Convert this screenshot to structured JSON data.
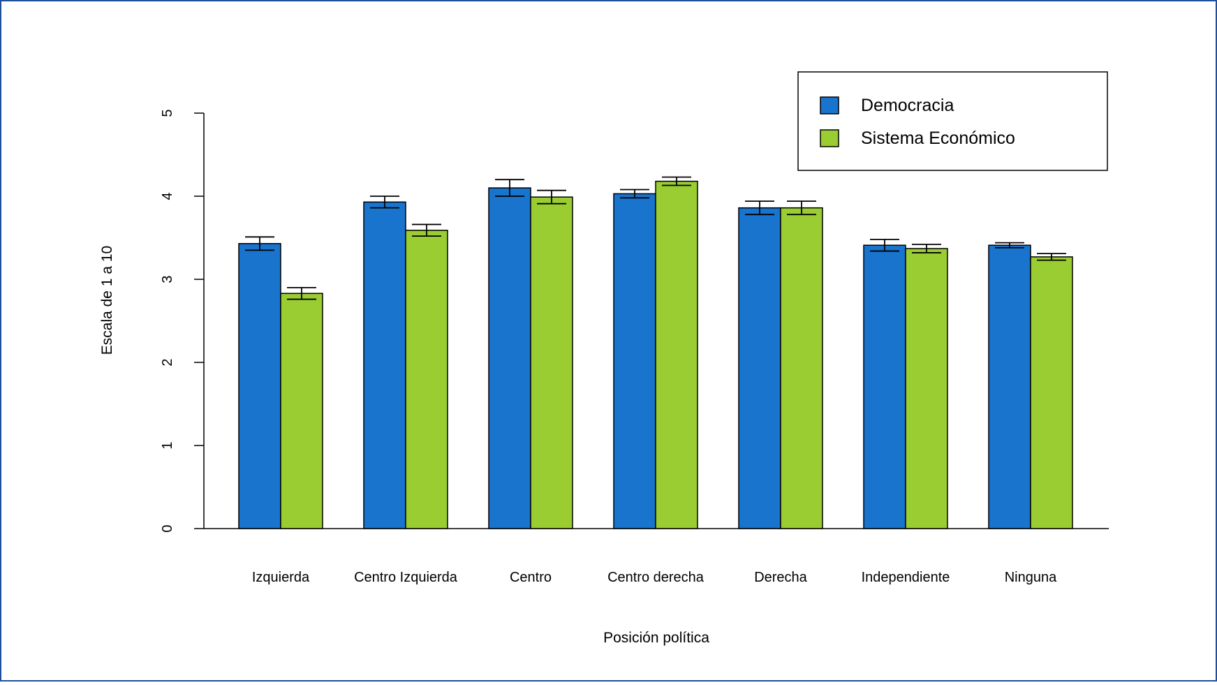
{
  "chart_data": {
    "type": "bar",
    "title": "",
    "xlabel": "Posición política",
    "ylabel": "Escala de 1 a 10",
    "ylim": [
      0,
      5
    ],
    "yticks": [
      0,
      1,
      2,
      3,
      4,
      5
    ],
    "categories": [
      "Izquierda",
      "Centro Izquierda",
      "Centro",
      "Centro derecha",
      "Derecha",
      "Independiente",
      "Ninguna"
    ],
    "series": [
      {
        "name": "Democracia",
        "color": "#1874CD",
        "values": [
          3.43,
          3.93,
          4.1,
          4.03,
          3.86,
          3.41,
          3.41
        ],
        "error": [
          0.08,
          0.07,
          0.1,
          0.05,
          0.08,
          0.07,
          0.03
        ]
      },
      {
        "name": "Sistema Económico",
        "color": "#9ACD32",
        "values": [
          2.83,
          3.59,
          3.99,
          4.18,
          3.86,
          3.37,
          3.27
        ],
        "error": [
          0.07,
          0.07,
          0.08,
          0.05,
          0.08,
          0.05,
          0.04
        ]
      }
    ],
    "legend_position": "top-right",
    "grid": false,
    "frame_color": "#1F4E9A"
  }
}
